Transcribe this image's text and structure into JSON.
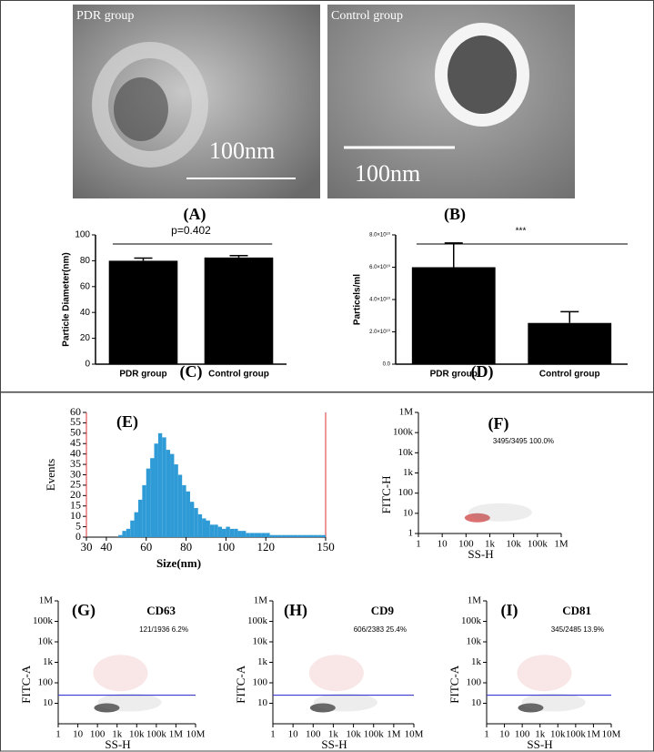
{
  "images": [
    {
      "label": "(A)",
      "caption": "PDR group",
      "scale": "100nm"
    },
    {
      "label": "(B)",
      "caption": "Control group",
      "scale": "100nm"
    }
  ],
  "chart_data": [
    {
      "type": "bar",
      "label": "(C)",
      "ylabel": "Particle Diameter(nm)",
      "annotation": "p=0.402",
      "categories": [
        "PDR group",
        "Control group"
      ],
      "values": [
        80,
        82.5
      ],
      "errors": [
        2,
        1.5
      ],
      "color": "#000000",
      "ylim": [
        0,
        100
      ],
      "yticks": [
        0,
        20,
        40,
        60,
        80,
        100
      ]
    },
    {
      "type": "bar",
      "label": "(D)",
      "ylabel": "Particels/ml",
      "annotation": "***",
      "categories": [
        "PDR group",
        "Control group"
      ],
      "values": [
        60000000000,
        25500000000
      ],
      "errors": [
        15000000000,
        7000000000
      ],
      "color": "#000000",
      "ylim": [
        0,
        80000000000
      ],
      "yticks": [
        {
          "value": 0,
          "label": "0.0"
        },
        {
          "value": 20000000000,
          "label": "2.0×10¹⁰"
        },
        {
          "value": 40000000000,
          "label": "4.0×10¹⁰"
        },
        {
          "value": 60000000000,
          "label": "6.0×10¹⁰"
        },
        {
          "value": 80000000000,
          "label": "8.0×10¹⁰"
        }
      ]
    },
    {
      "type": "histogram",
      "label": "(E)",
      "xlabel": "Size(nm)",
      "ylabel": "Events",
      "color": "#2e9bd6",
      "bins": [
        46,
        48,
        50,
        52,
        54,
        56,
        58,
        60,
        62,
        64,
        66,
        68,
        70,
        72,
        74,
        76,
        78,
        80,
        82,
        84,
        86,
        88,
        90,
        92,
        94,
        96,
        98,
        100,
        102,
        104,
        106,
        108,
        110,
        112,
        114,
        116,
        118,
        120,
        122,
        124,
        126,
        128,
        130,
        132,
        134,
        136,
        138,
        140,
        142,
        144,
        146,
        148,
        150
      ],
      "counts": [
        1,
        3,
        4,
        8,
        12,
        18,
        25,
        33,
        38,
        45,
        50,
        48,
        42,
        40,
        35,
        30,
        25,
        22,
        17,
        14,
        11,
        9,
        8,
        6,
        6,
        5,
        4,
        5,
        4,
        4,
        3,
        3,
        2,
        2,
        2,
        2,
        2,
        2,
        1,
        1,
        1,
        1,
        1,
        1,
        1,
        1,
        1,
        1,
        1,
        1,
        1,
        1
      ],
      "xlim": [
        30,
        150
      ],
      "xticks": [
        30,
        40,
        60,
        80,
        100,
        120,
        150
      ],
      "ylim": [
        0,
        60
      ],
      "yticks": [
        0,
        5,
        10,
        15,
        20,
        25,
        30,
        35,
        40,
        45,
        50,
        55,
        60
      ]
    },
    {
      "type": "scatter",
      "label": "(F)",
      "xlabel": "SS-H",
      "ylabel": "FITC-H",
      "gate_text": "3495/3495  100.0%",
      "log": true,
      "xlim": [
        1,
        1000000
      ],
      "xticks": [
        1,
        10,
        100,
        {
          "value": 1000,
          "label": "1k"
        },
        {
          "value": 10000,
          "label": "10k"
        },
        {
          "value": 100000,
          "label": "100k"
        },
        {
          "value": 1000000,
          "label": "1M"
        }
      ],
      "ylim": [
        1,
        1000000
      ],
      "yticks": [
        1,
        10,
        100,
        {
          "value": 1000,
          "label": "1k"
        },
        {
          "value": 10000,
          "label": "10k"
        },
        {
          "value": 100000,
          "label": "100k"
        },
        {
          "value": 1000000,
          "label": "1M"
        }
      ]
    },
    {
      "type": "scatter",
      "label": "(G)",
      "marker": "CD63",
      "xlabel": "SS-H",
      "ylabel": "FITC-A",
      "gate_text": "121/1936  6.2%",
      "log": true,
      "threshold": 25,
      "xlim": [
        1,
        10000000
      ],
      "xticks": [
        1,
        10,
        100,
        {
          "value": 1000,
          "label": "1k"
        },
        {
          "value": 10000,
          "label": "10k"
        },
        {
          "value": 100000,
          "label": "100k"
        },
        {
          "value": 1000000,
          "label": "1M"
        },
        {
          "value": 10000000,
          "label": "10M"
        }
      ],
      "ylim": [
        1,
        1000000
      ],
      "yticks": [
        10,
        100,
        {
          "value": 1000,
          "label": "1k"
        },
        {
          "value": 10000,
          "label": "10k"
        },
        {
          "value": 100000,
          "label": "100k"
        },
        {
          "value": 1000000,
          "label": "1M"
        }
      ]
    },
    {
      "type": "scatter",
      "label": "(H)",
      "marker": "CD9",
      "xlabel": "SS-H",
      "ylabel": "FITC-A",
      "gate_text": "606/2383  25.4%",
      "log": true,
      "threshold": 25,
      "xlim": [
        1,
        10000000
      ],
      "xticks": [
        1,
        10,
        100,
        {
          "value": 1000,
          "label": "1k"
        },
        {
          "value": 10000,
          "label": "10k"
        },
        {
          "value": 100000,
          "label": "100k"
        },
        {
          "value": 1000000,
          "label": "1M"
        },
        {
          "value": 10000000,
          "label": "10M"
        }
      ],
      "ylim": [
        1,
        1000000
      ],
      "yticks": [
        10,
        100,
        {
          "value": 1000,
          "label": "1k"
        },
        {
          "value": 10000,
          "label": "10k"
        },
        {
          "value": 100000,
          "label": "100k"
        },
        {
          "value": 1000000,
          "label": "1M"
        }
      ]
    },
    {
      "type": "scatter",
      "label": "(I)",
      "marker": "CD81",
      "xlabel": "SS-H",
      "ylabel": "FITC-A",
      "gate_text": "345/2485  13.9%",
      "log": true,
      "threshold": 25,
      "xlim": [
        1,
        10000000
      ],
      "xticks": [
        1,
        10,
        100,
        {
          "value": 1000,
          "label": "1k"
        },
        {
          "value": 10000,
          "label": "10k"
        },
        {
          "value": 100000,
          "label": "100k"
        },
        {
          "value": 1000000,
          "label": "1M"
        },
        {
          "value": 10000000,
          "label": "10M"
        }
      ],
      "ylim": [
        1,
        1000000
      ],
      "yticks": [
        10,
        100,
        {
          "value": 1000,
          "label": "1k"
        },
        {
          "value": 10000,
          "label": "10k"
        },
        {
          "value": 100000,
          "label": "100k"
        },
        {
          "value": 1000000,
          "label": "1M"
        }
      ]
    }
  ]
}
